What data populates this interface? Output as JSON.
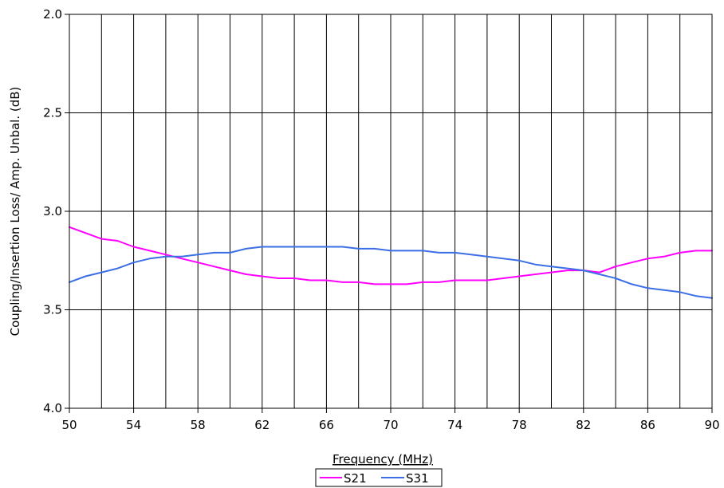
{
  "chart_data": {
    "type": "line",
    "xlabel": "Frequency (MHz)",
    "ylabel": "Coupling/Insertion Loss/ Amp. Unbal.  (dB)",
    "xlim": [
      50,
      90
    ],
    "ylim": [
      2.0,
      4.0
    ],
    "y_reversed": true,
    "x_ticks": [
      "50",
      "54",
      "58",
      "62",
      "66",
      "70",
      "74",
      "78",
      "82",
      "86",
      "90"
    ],
    "y_ticks": [
      "2.0",
      "2.5",
      "3.0",
      "3.5",
      "4.0"
    ],
    "grid": "vertical lines every 2 MHz, horizontal at each y tick",
    "legend_position": "bottom",
    "x": [
      50,
      51,
      52,
      53,
      54,
      55,
      56,
      57,
      58,
      59,
      60,
      61,
      62,
      63,
      64,
      65,
      66,
      67,
      68,
      69,
      70,
      71,
      72,
      73,
      74,
      75,
      76,
      77,
      78,
      79,
      80,
      81,
      82,
      83,
      84,
      85,
      86,
      87,
      88,
      89,
      90
    ],
    "series": [
      {
        "name": "S21",
        "color": "#ff00ff",
        "values": [
          3.08,
          3.11,
          3.14,
          3.15,
          3.18,
          3.2,
          3.22,
          3.24,
          3.26,
          3.28,
          3.3,
          3.32,
          3.33,
          3.34,
          3.34,
          3.35,
          3.35,
          3.36,
          3.36,
          3.37,
          3.37,
          3.37,
          3.36,
          3.36,
          3.35,
          3.35,
          3.35,
          3.34,
          3.33,
          3.32,
          3.31,
          3.3,
          3.3,
          3.31,
          3.28,
          3.26,
          3.24,
          3.23,
          3.21,
          3.2,
          3.2
        ]
      },
      {
        "name": "S31",
        "color": "#3c6ee6",
        "values": [
          3.36,
          3.33,
          3.31,
          3.29,
          3.26,
          3.24,
          3.23,
          3.23,
          3.22,
          3.21,
          3.21,
          3.19,
          3.18,
          3.18,
          3.18,
          3.18,
          3.18,
          3.18,
          3.19,
          3.19,
          3.2,
          3.2,
          3.2,
          3.21,
          3.21,
          3.22,
          3.23,
          3.24,
          3.25,
          3.27,
          3.28,
          3.29,
          3.3,
          3.32,
          3.34,
          3.37,
          3.39,
          3.4,
          3.41,
          3.43,
          3.44
        ]
      }
    ]
  }
}
